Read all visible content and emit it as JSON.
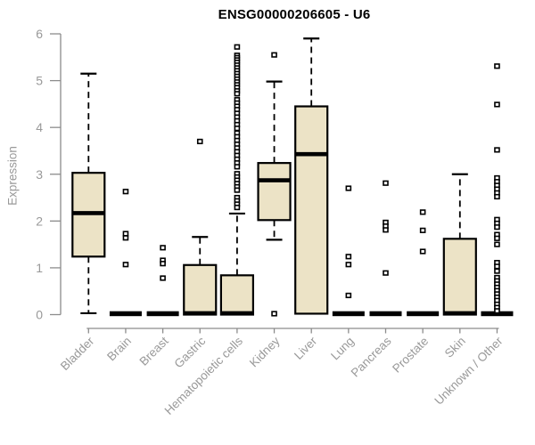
{
  "chart_data": {
    "type": "boxplot",
    "title": "ENSG00000206605 - U6",
    "ylabel": "Expression",
    "ylim": [
      0,
      6
    ],
    "yticks": [
      0,
      1,
      2,
      3,
      4,
      5,
      6
    ],
    "grid": false,
    "legend": "none",
    "colors": {
      "box_fill": "#ece3c6",
      "box_border": "#000000",
      "median": "#000000",
      "axis": "#8c8c8c",
      "tick_text": "#999999",
      "title_text": "#000000"
    },
    "categories": [
      "Bladder",
      "Brain",
      "Breast",
      "Gastric",
      "Hematopoietic cells",
      "Kidney",
      "Liver",
      "Lung",
      "Pancreas",
      "Prostate",
      "Skin",
      "Unknown / Other"
    ],
    "series": [
      {
        "name": "Bladder",
        "low": 0.03,
        "q1": 1.24,
        "median": 2.17,
        "q3": 3.03,
        "high": 5.15,
        "outliers": []
      },
      {
        "name": "Brain",
        "low": 0,
        "q1": 0,
        "median": 0.02,
        "q3": 0.03,
        "high": 0.03,
        "outliers": [
          2.63,
          1.73,
          1.64,
          1.07
        ]
      },
      {
        "name": "Breast",
        "low": 0,
        "q1": 0,
        "median": 0.02,
        "q3": 0.03,
        "high": 0.03,
        "outliers": [
          1.43,
          1.16,
          1.09,
          0.78
        ]
      },
      {
        "name": "Gastric",
        "low": 0,
        "q1": 0,
        "median": 0.03,
        "q3": 1.06,
        "high": 1.66,
        "outliers": [
          3.7
        ]
      },
      {
        "name": "Hematopoietic cells",
        "low": 0,
        "q1": 0,
        "median": 0.03,
        "q3": 0.84,
        "high": 2.16,
        "outliers": [
          5.72,
          5.54,
          5.49,
          5.44,
          5.39,
          5.33,
          5.27,
          5.21,
          5.15,
          5.09,
          5.03,
          4.97,
          4.91,
          4.85,
          4.78,
          4.72,
          4.59,
          4.52,
          4.45,
          4.38,
          4.3,
          4.22,
          4.14,
          4.06,
          3.98,
          3.88,
          3.8,
          3.72,
          3.64,
          3.56,
          3.48,
          3.4,
          3.32,
          3.24,
          3.16,
          3.01,
          2.94,
          2.87,
          2.8,
          2.73,
          2.66,
          2.5,
          2.43,
          2.36,
          2.29
        ]
      },
      {
        "name": "Kidney",
        "low": 1.6,
        "q1": 2.02,
        "median": 2.87,
        "q3": 3.24,
        "high": 4.98,
        "outliers": [
          5.55,
          0.02
        ]
      },
      {
        "name": "Liver",
        "low": 0.02,
        "q1": 0.02,
        "median": 3.43,
        "q3": 4.45,
        "high": 5.9,
        "outliers": []
      },
      {
        "name": "Lung",
        "low": 0,
        "q1": 0,
        "median": 0.02,
        "q3": 0.03,
        "high": 0.03,
        "outliers": [
          2.7,
          1.24,
          1.07,
          0.41
        ]
      },
      {
        "name": "Pancreas",
        "low": 0,
        "q1": 0,
        "median": 0.02,
        "q3": 0.03,
        "high": 0.03,
        "outliers": [
          2.81,
          1.97,
          1.89,
          1.81,
          0.89
        ]
      },
      {
        "name": "Prostate",
        "low": 0,
        "q1": 0,
        "median": 0.02,
        "q3": 0.03,
        "high": 0.03,
        "outliers": [
          2.19,
          1.8,
          1.35
        ]
      },
      {
        "name": "Skin",
        "low": 0,
        "q1": 0,
        "median": 0.03,
        "q3": 1.62,
        "high": 3.0,
        "outliers": []
      },
      {
        "name": "Unknown / Other",
        "low": 0,
        "q1": 0,
        "median": 0.02,
        "q3": 0.03,
        "high": 0.03,
        "outliers": [
          5.31,
          4.49,
          3.52,
          2.92,
          2.84,
          2.76,
          2.68,
          2.6,
          2.52,
          2.03,
          1.95,
          1.87,
          1.71,
          1.63,
          1.5,
          1.11,
          1.03,
          0.93,
          0.79,
          0.72,
          0.65,
          0.58,
          0.51,
          0.44,
          0.37,
          0.3,
          0.22,
          0.15,
          0.08
        ]
      }
    ]
  }
}
